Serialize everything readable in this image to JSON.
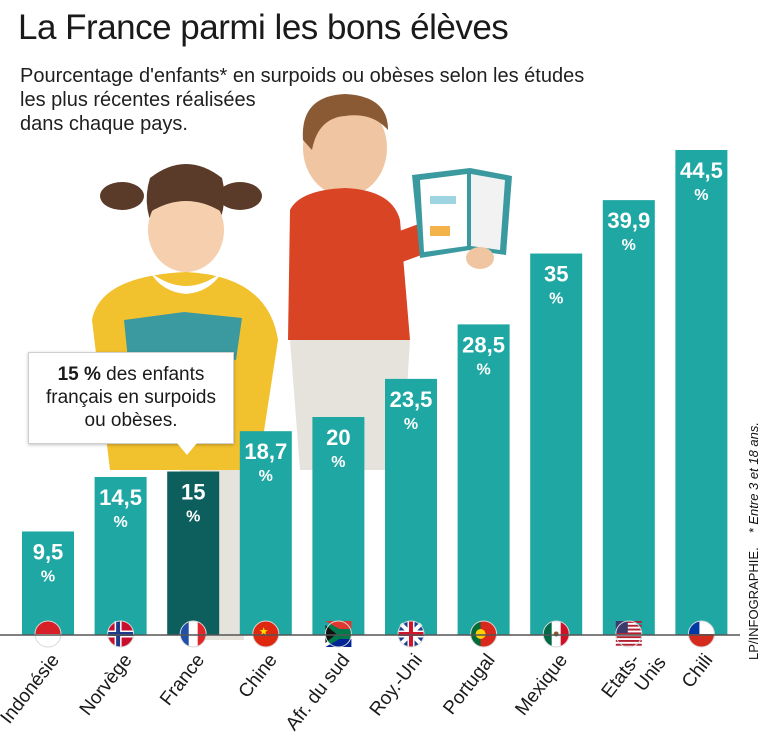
{
  "title": "La France parmi les bons élèves",
  "subtitle_lines": [
    "Pourcentage d'enfants* en surpoids ou obèses selon les études",
    "les plus récentes réalisées",
    "dans chaque pays."
  ],
  "credit": "LP/INFOGRAPHIE.",
  "footnote": "* Entre 3 et 18 ans.",
  "callout": {
    "bold": "15 %",
    "rest_line1": " des enfants",
    "line2": "français en surpoids",
    "line3": "ou obèses."
  },
  "colors": {
    "bar": "#1ea7a3",
    "highlight": "#0c5f5d",
    "baseline": "#555555",
    "label_text": "#ffffff"
  },
  "icons": [
    "indonesia-flag-icon",
    "norway-flag-icon",
    "france-flag-icon",
    "china-flag-icon",
    "south-africa-flag-icon",
    "uk-flag-icon",
    "portugal-flag-icon",
    "mexico-flag-icon",
    "usa-flag-icon",
    "chile-flag-icon"
  ],
  "chart_data": {
    "type": "bar",
    "title": "La France parmi les bons élèves",
    "categories": [
      "Indonésie",
      "Norvège",
      "France",
      "Chine",
      "Afr. du sud",
      "Roy.-Uni",
      "Portugal",
      "Mexique",
      "Etats-Unis",
      "Chili"
    ],
    "values": [
      9.5,
      14.5,
      15,
      18.7,
      20,
      23.5,
      28.5,
      35,
      39.9,
      44.5
    ],
    "value_labels": [
      "9,5",
      "14,5",
      "15",
      "18,7",
      "20",
      "23,5",
      "28,5",
      "35",
      "39,9",
      "44,5"
    ],
    "unit": "%",
    "highlight": "France",
    "ylim": [
      0,
      44.5
    ],
    "grid": false
  }
}
